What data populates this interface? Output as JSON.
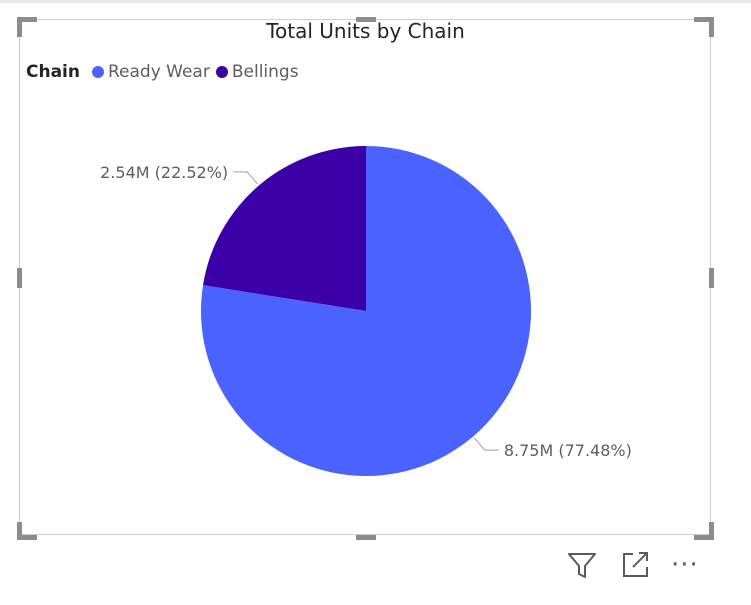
{
  "visual": {
    "title": "Total Units by Chain",
    "legend_title": "Chain",
    "legend_items": [
      {
        "label": "Ready Wear",
        "color": "#4a63ff"
      },
      {
        "label": "Bellings",
        "color": "#3b00a8"
      }
    ]
  },
  "chart_data": {
    "type": "pie",
    "title": "Total Units by Chain",
    "legend": "top-left",
    "slices": [
      {
        "name": "Ready Wear",
        "value": 8.75,
        "unit": "M",
        "percent": 77.48,
        "color": "#4a63ff",
        "label": "8.75M (77.48%)"
      },
      {
        "name": "Bellings",
        "value": 2.54,
        "unit": "M",
        "percent": 22.52,
        "color": "#3b00a8",
        "label": "2.54M (22.52%)"
      }
    ]
  },
  "toolbar": {
    "icons": [
      "filter-icon",
      "focus-mode-icon",
      "more-options-icon"
    ],
    "more_glyph": "···"
  }
}
